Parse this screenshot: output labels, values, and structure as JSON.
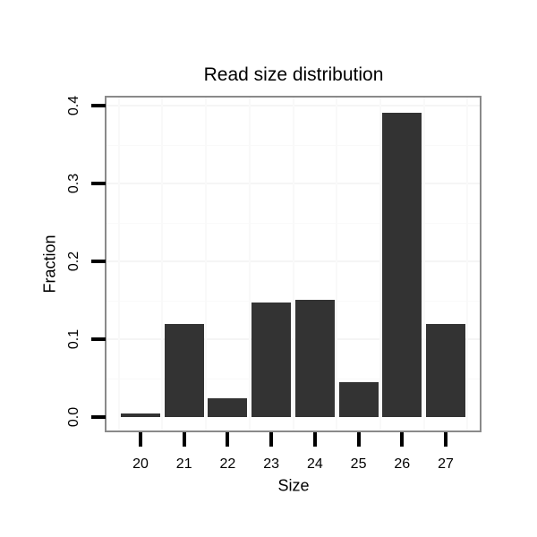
{
  "chart_data": {
    "type": "bar",
    "title": "Read size distribution",
    "xlabel": "Size",
    "ylabel": "Fraction",
    "categories": [
      "20",
      "21",
      "22",
      "23",
      "24",
      "25",
      "26",
      "27"
    ],
    "values": [
      0.005,
      0.12,
      0.024,
      0.147,
      0.151,
      0.045,
      0.391,
      0.12
    ],
    "ylim": [
      0,
      0.4
    ],
    "yticks": [
      0,
      0.1,
      0.2,
      0.3,
      0.4
    ],
    "ytick_labels": [
      "0.0",
      "0.1",
      "0.2",
      "0.3",
      "0.4"
    ],
    "legend": "none",
    "grid": "faint; horizontal lines every 0.05, vertical minor lines between categories",
    "bar_width_fraction": 0.9
  },
  "colors": {
    "background": "#ffffff",
    "bar_fill": "#333333",
    "panel_border": "#8a8a8a",
    "tick": "#000000",
    "text": "#000000",
    "grid_major": "#f5f5f5",
    "grid_minor": "#f9f9f9"
  }
}
